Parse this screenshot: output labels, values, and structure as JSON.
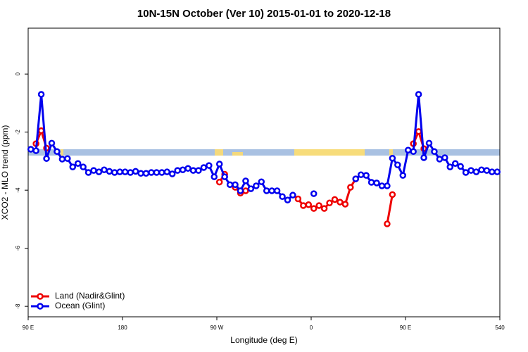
{
  "chart_data": {
    "type": "line",
    "title": "10N-15N October (Ver 10)   2015-01-01 to 2020-12-18",
    "x_label": "Longitude (deg E)",
    "y_label": "XCO2 - MLO trend (ppm)",
    "xlim": [
      90,
      540
    ],
    "xticks": [
      {
        "value": 90,
        "label": "90 E"
      },
      180,
      {
        "value": 270,
        "label": "90 W"
      },
      {
        "value": 360,
        "label": "0"
      },
      {
        "value": 450,
        "label": "90 E"
      },
      540
    ],
    "ylim": [
      -8.36,
      1.58
    ],
    "yticks": [
      -8,
      -6,
      -4,
      -2,
      0
    ],
    "legend": "bottom-left",
    "x": [
      92.5,
      97.5,
      102.5,
      107.5,
      112.5,
      117.5,
      122.5,
      127.5,
      132.5,
      137.5,
      142.5,
      147.5,
      152.5,
      157.5,
      162.5,
      167.5,
      172.5,
      177.5,
      182.5,
      187.5,
      192.5,
      197.5,
      202.5,
      207.5,
      212.5,
      217.5,
      222.5,
      227.5,
      232.5,
      237.5,
      242.5,
      247.5,
      252.5,
      257.5,
      262.5,
      267.5,
      272.5,
      277.5,
      282.5,
      287.5,
      292.5,
      297.5,
      302.5,
      307.5,
      312.5,
      317.5,
      322.5,
      327.5,
      332.5,
      337.5,
      342.5,
      347.5,
      352.5,
      357.5,
      362.5,
      367.5,
      372.5,
      377.5,
      382.5,
      387.5,
      392.5,
      397.5,
      402.5,
      407.5,
      412.5,
      417.5,
      422.5,
      427.5,
      432.5,
      437.5,
      442.5,
      447.5,
      452.5,
      457.5,
      462.5,
      467.5,
      472.5,
      477.5,
      482.5,
      487.5,
      492.5,
      497.5,
      502.5,
      507.5,
      512.5,
      517.5,
      522.5,
      527.5,
      532.5,
      537.5
    ],
    "series": [
      {
        "name": "Land (Nadir&Glint)",
        "color": "#ee0000",
        "values": [
          null,
          -2.4,
          -1.95,
          -2.55,
          null,
          null,
          null,
          null,
          null,
          null,
          null,
          null,
          null,
          null,
          null,
          null,
          null,
          null,
          null,
          null,
          null,
          null,
          null,
          null,
          null,
          null,
          null,
          null,
          null,
          null,
          null,
          null,
          null,
          null,
          null,
          null,
          -3.72,
          -3.45,
          null,
          -3.9,
          -4.1,
          -4.02,
          null,
          null,
          null,
          null,
          null,
          null,
          null,
          null,
          null,
          -4.3,
          -4.53,
          -4.5,
          -4.63,
          -4.53,
          -4.63,
          -4.44,
          -4.32,
          -4.41,
          -4.48,
          -3.9,
          -3.61,
          null,
          null,
          null,
          null,
          null,
          -5.16,
          -4.15,
          null,
          null,
          null,
          -2.4,
          -1.98,
          -2.57,
          null,
          null,
          null,
          null,
          null,
          null,
          null,
          null,
          null,
          null,
          null,
          null,
          null,
          null
        ]
      },
      {
        "name": "Ocean (Glint)",
        "color": "#0000ee",
        "values": [
          -2.59,
          -2.64,
          -0.7,
          -2.91,
          -2.38,
          -2.67,
          -2.93,
          -2.91,
          -3.2,
          -3.08,
          -3.2,
          -3.39,
          -3.32,
          -3.37,
          -3.3,
          -3.35,
          -3.39,
          -3.37,
          -3.37,
          -3.39,
          -3.35,
          -3.42,
          -3.42,
          -3.39,
          -3.39,
          -3.39,
          -3.37,
          -3.44,
          -3.32,
          -3.3,
          -3.25,
          -3.32,
          -3.32,
          -3.22,
          -3.15,
          -3.54,
          -3.1,
          -3.54,
          -3.81,
          -3.81,
          -4.02,
          -3.68,
          -3.95,
          -3.85,
          -3.71,
          -4.02,
          -4.02,
          -4.02,
          -4.22,
          -4.34,
          -4.17,
          null,
          null,
          null,
          -4.12,
          null,
          null,
          null,
          null,
          null,
          null,
          null,
          -3.61,
          -3.47,
          -3.49,
          -3.73,
          -3.75,
          -3.85,
          -3.85,
          -2.9,
          -3.13,
          -3.49,
          -2.62,
          -2.67,
          -0.7,
          -2.88,
          -2.38,
          -2.67,
          -2.93,
          -2.88,
          -3.2,
          -3.08,
          -3.18,
          -3.39,
          -3.32,
          -3.37,
          -3.3,
          -3.32,
          -3.37,
          -3.37
        ]
      }
    ]
  }
}
